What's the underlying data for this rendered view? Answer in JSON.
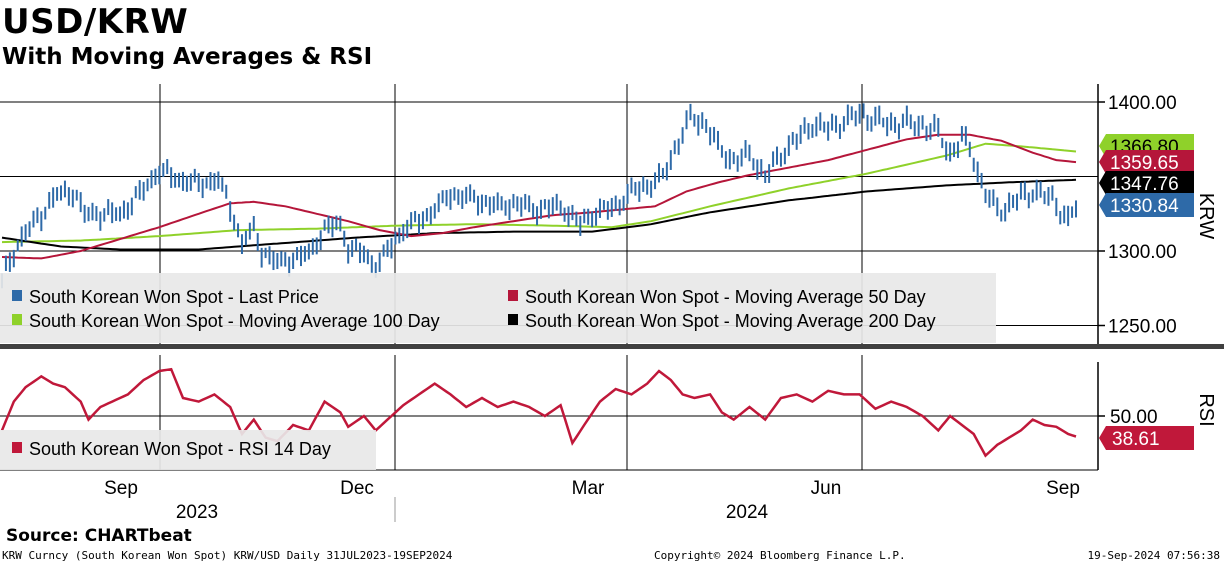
{
  "header": {
    "title": "USD/KRW",
    "subtitle": "With Moving Averages & RSI"
  },
  "footer": {
    "source": "Source: CHARTbeat",
    "ticker_info": "KRW Curncy (South Korean Won Spot) KRW/USD  Daily 31JUL2023-19SEP2024",
    "copyright": "Copyright© 2024 Bloomberg Finance L.P.",
    "timestamp": "19-Sep-2024 07:56:38"
  },
  "colors": {
    "price": "#2e6aa8",
    "ma50": "#b5163a",
    "ma100": "#8fd12a",
    "ma200": "#000000",
    "rsi": "#c0183a"
  },
  "chart_data": [
    {
      "type": "line",
      "title": "USD/KRW",
      "ylabel": "KRW",
      "ylim": [
        1245,
        1410
      ],
      "y_ticks": [
        "1400.00",
        "1300.00",
        "1250.00"
      ],
      "x_ticks": [
        "Sep",
        "Dec",
        "Mar",
        "Jun",
        "Sep"
      ],
      "x_years": [
        "2023",
        "2024"
      ],
      "legend": [
        "South Korean Won Spot - Last Price",
        "South Korean Won Spot - Moving Average 50 Day",
        "South Korean Won Spot - Moving Average 100 Day",
        "South Korean Won Spot - Moving Average 200 Day"
      ],
      "last_value_labels": [
        {
          "series": "ma100",
          "label": "1366.80"
        },
        {
          "series": "ma50",
          "label": "1359.65"
        },
        {
          "series": "ma200",
          "label": "1347.76"
        },
        {
          "series": "price",
          "label": "1330.84"
        }
      ],
      "price_anchors": [
        [
          0,
          1280
        ],
        [
          3,
          1300
        ],
        [
          6,
          1312
        ],
        [
          10,
          1325
        ],
        [
          14,
          1338
        ],
        [
          18,
          1340
        ],
        [
          21,
          1325
        ],
        [
          25,
          1325
        ],
        [
          30,
          1325
        ],
        [
          34,
          1335
        ],
        [
          37,
          1345
        ],
        [
          40,
          1354
        ],
        [
          45,
          1348
        ],
        [
          50,
          1345
        ],
        [
          55,
          1348
        ],
        [
          58,
          1330
        ],
        [
          61,
          1305
        ],
        [
          64,
          1315
        ],
        [
          66,
          1300
        ],
        [
          70,
          1292
        ],
        [
          74,
          1295
        ],
        [
          78,
          1298
        ],
        [
          82,
          1315
        ],
        [
          86,
          1318
        ],
        [
          88,
          1302
        ],
        [
          92,
          1298
        ],
        [
          95,
          1290
        ],
        [
          98,
          1300
        ],
        [
          102,
          1315
        ],
        [
          106,
          1320
        ],
        [
          110,
          1328
        ],
        [
          114,
          1338
        ],
        [
          120,
          1335
        ],
        [
          126,
          1330
        ],
        [
          130,
          1332
        ],
        [
          136,
          1328
        ],
        [
          142,
          1330
        ],
        [
          147,
          1318
        ],
        [
          150,
          1325
        ],
        [
          156,
          1330
        ],
        [
          160,
          1340
        ],
        [
          164,
          1344
        ],
        [
          168,
          1350
        ],
        [
          171,
          1368
        ],
        [
          175,
          1390
        ],
        [
          179,
          1385
        ],
        [
          182,
          1370
        ],
        [
          186,
          1360
        ],
        [
          190,
          1365
        ],
        [
          194,
          1350
        ],
        [
          198,
          1365
        ],
        [
          202,
          1375
        ],
        [
          206,
          1385
        ],
        [
          210,
          1382
        ],
        [
          214,
          1387
        ],
        [
          218,
          1392
        ],
        [
          222,
          1388
        ],
        [
          226,
          1385
        ],
        [
          230,
          1386
        ],
        [
          234,
          1384
        ],
        [
          238,
          1380
        ],
        [
          241,
          1365
        ],
        [
          244,
          1375
        ],
        [
          246,
          1370
        ],
        [
          249,
          1345
        ],
        [
          252,
          1330
        ],
        [
          255,
          1328
        ],
        [
          258,
          1335
        ],
        [
          262,
          1340
        ],
        [
          265,
          1338
        ],
        [
          268,
          1332
        ],
        [
          271,
          1320
        ],
        [
          273,
          1330
        ]
      ],
      "ma50_anchors": [
        [
          0,
          1296
        ],
        [
          10,
          1295
        ],
        [
          20,
          1300
        ],
        [
          30,
          1308
        ],
        [
          40,
          1316
        ],
        [
          50,
          1325
        ],
        [
          58,
          1332
        ],
        [
          64,
          1333
        ],
        [
          72,
          1330
        ],
        [
          80,
          1325
        ],
        [
          88,
          1320
        ],
        [
          96,
          1314
        ],
        [
          104,
          1310
        ],
        [
          112,
          1312
        ],
        [
          120,
          1316
        ],
        [
          130,
          1320
        ],
        [
          140,
          1324
        ],
        [
          150,
          1326
        ],
        [
          158,
          1328
        ],
        [
          166,
          1330
        ],
        [
          174,
          1340
        ],
        [
          182,
          1346
        ],
        [
          190,
          1351
        ],
        [
          200,
          1356
        ],
        [
          210,
          1361
        ],
        [
          220,
          1368
        ],
        [
          230,
          1375
        ],
        [
          238,
          1378
        ],
        [
          246,
          1378
        ],
        [
          254,
          1374
        ],
        [
          262,
          1366
        ],
        [
          268,
          1361
        ],
        [
          273,
          1359.65
        ]
      ],
      "ma100_anchors": [
        [
          0,
          1306
        ],
        [
          20,
          1307
        ],
        [
          40,
          1310
        ],
        [
          60,
          1314
        ],
        [
          80,
          1315
        ],
        [
          100,
          1317
        ],
        [
          120,
          1318
        ],
        [
          140,
          1317
        ],
        [
          155,
          1316
        ],
        [
          165,
          1320
        ],
        [
          180,
          1330
        ],
        [
          200,
          1342
        ],
        [
          220,
          1352
        ],
        [
          240,
          1364
        ],
        [
          250,
          1372
        ],
        [
          260,
          1370
        ],
        [
          273,
          1366.8
        ]
      ],
      "ma200_anchors": [
        [
          0,
          1309
        ],
        [
          15,
          1303
        ],
        [
          30,
          1301
        ],
        [
          50,
          1301
        ],
        [
          70,
          1305
        ],
        [
          90,
          1309
        ],
        [
          110,
          1312
        ],
        [
          130,
          1313
        ],
        [
          150,
          1313
        ],
        [
          165,
          1318
        ],
        [
          180,
          1326
        ],
        [
          200,
          1334
        ],
        [
          220,
          1340
        ],
        [
          240,
          1344
        ],
        [
          255,
          1346
        ],
        [
          265,
          1347
        ],
        [
          273,
          1347.76
        ]
      ]
    },
    {
      "type": "line",
      "title": "RSI",
      "ylabel": "RSI",
      "ylim": [
        20,
        90
      ],
      "y_ticks": [
        "50.00"
      ],
      "legend": [
        "South Korean Won Spot - RSI 14 Day"
      ],
      "last_value_label": "38.61",
      "rsi_anchors": [
        [
          0,
          42
        ],
        [
          3,
          58
        ],
        [
          6,
          66
        ],
        [
          10,
          72
        ],
        [
          13,
          68
        ],
        [
          16,
          66
        ],
        [
          20,
          58
        ],
        [
          22,
          48
        ],
        [
          25,
          55
        ],
        [
          28,
          58
        ],
        [
          32,
          62
        ],
        [
          36,
          70
        ],
        [
          40,
          75
        ],
        [
          43,
          76
        ],
        [
          46,
          60
        ],
        [
          50,
          58
        ],
        [
          54,
          62
        ],
        [
          58,
          55
        ],
        [
          61,
          40
        ],
        [
          64,
          48
        ],
        [
          67,
          38
        ],
        [
          70,
          36
        ],
        [
          74,
          45
        ],
        [
          78,
          42
        ],
        [
          82,
          58
        ],
        [
          86,
          52
        ],
        [
          88,
          44
        ],
        [
          92,
          50
        ],
        [
          95,
          42
        ],
        [
          98,
          48
        ],
        [
          102,
          56
        ],
        [
          106,
          62
        ],
        [
          110,
          68
        ],
        [
          114,
          62
        ],
        [
          118,
          55
        ],
        [
          122,
          60
        ],
        [
          126,
          55
        ],
        [
          130,
          58
        ],
        [
          134,
          55
        ],
        [
          138,
          50
        ],
        [
          142,
          56
        ],
        [
          145,
          35
        ],
        [
          148,
          45
        ],
        [
          152,
          58
        ],
        [
          156,
          65
        ],
        [
          160,
          62
        ],
        [
          164,
          68
        ],
        [
          167,
          75
        ],
        [
          170,
          70
        ],
        [
          173,
          62
        ],
        [
          176,
          60
        ],
        [
          180,
          62
        ],
        [
          183,
          52
        ],
        [
          186,
          48
        ],
        [
          190,
          55
        ],
        [
          194,
          48
        ],
        [
          198,
          60
        ],
        [
          202,
          62
        ],
        [
          206,
          58
        ],
        [
          210,
          64
        ],
        [
          214,
          62
        ],
        [
          218,
          62
        ],
        [
          222,
          54
        ],
        [
          226,
          58
        ],
        [
          230,
          55
        ],
        [
          234,
          50
        ],
        [
          238,
          42
        ],
        [
          241,
          50
        ],
        [
          244,
          45
        ],
        [
          247,
          40
        ],
        [
          250,
          28
        ],
        [
          253,
          34
        ],
        [
          256,
          38
        ],
        [
          259,
          42
        ],
        [
          262,
          48
        ],
        [
          265,
          45
        ],
        [
          268,
          44
        ],
        [
          271,
          40
        ],
        [
          273,
          38.61
        ]
      ]
    }
  ]
}
